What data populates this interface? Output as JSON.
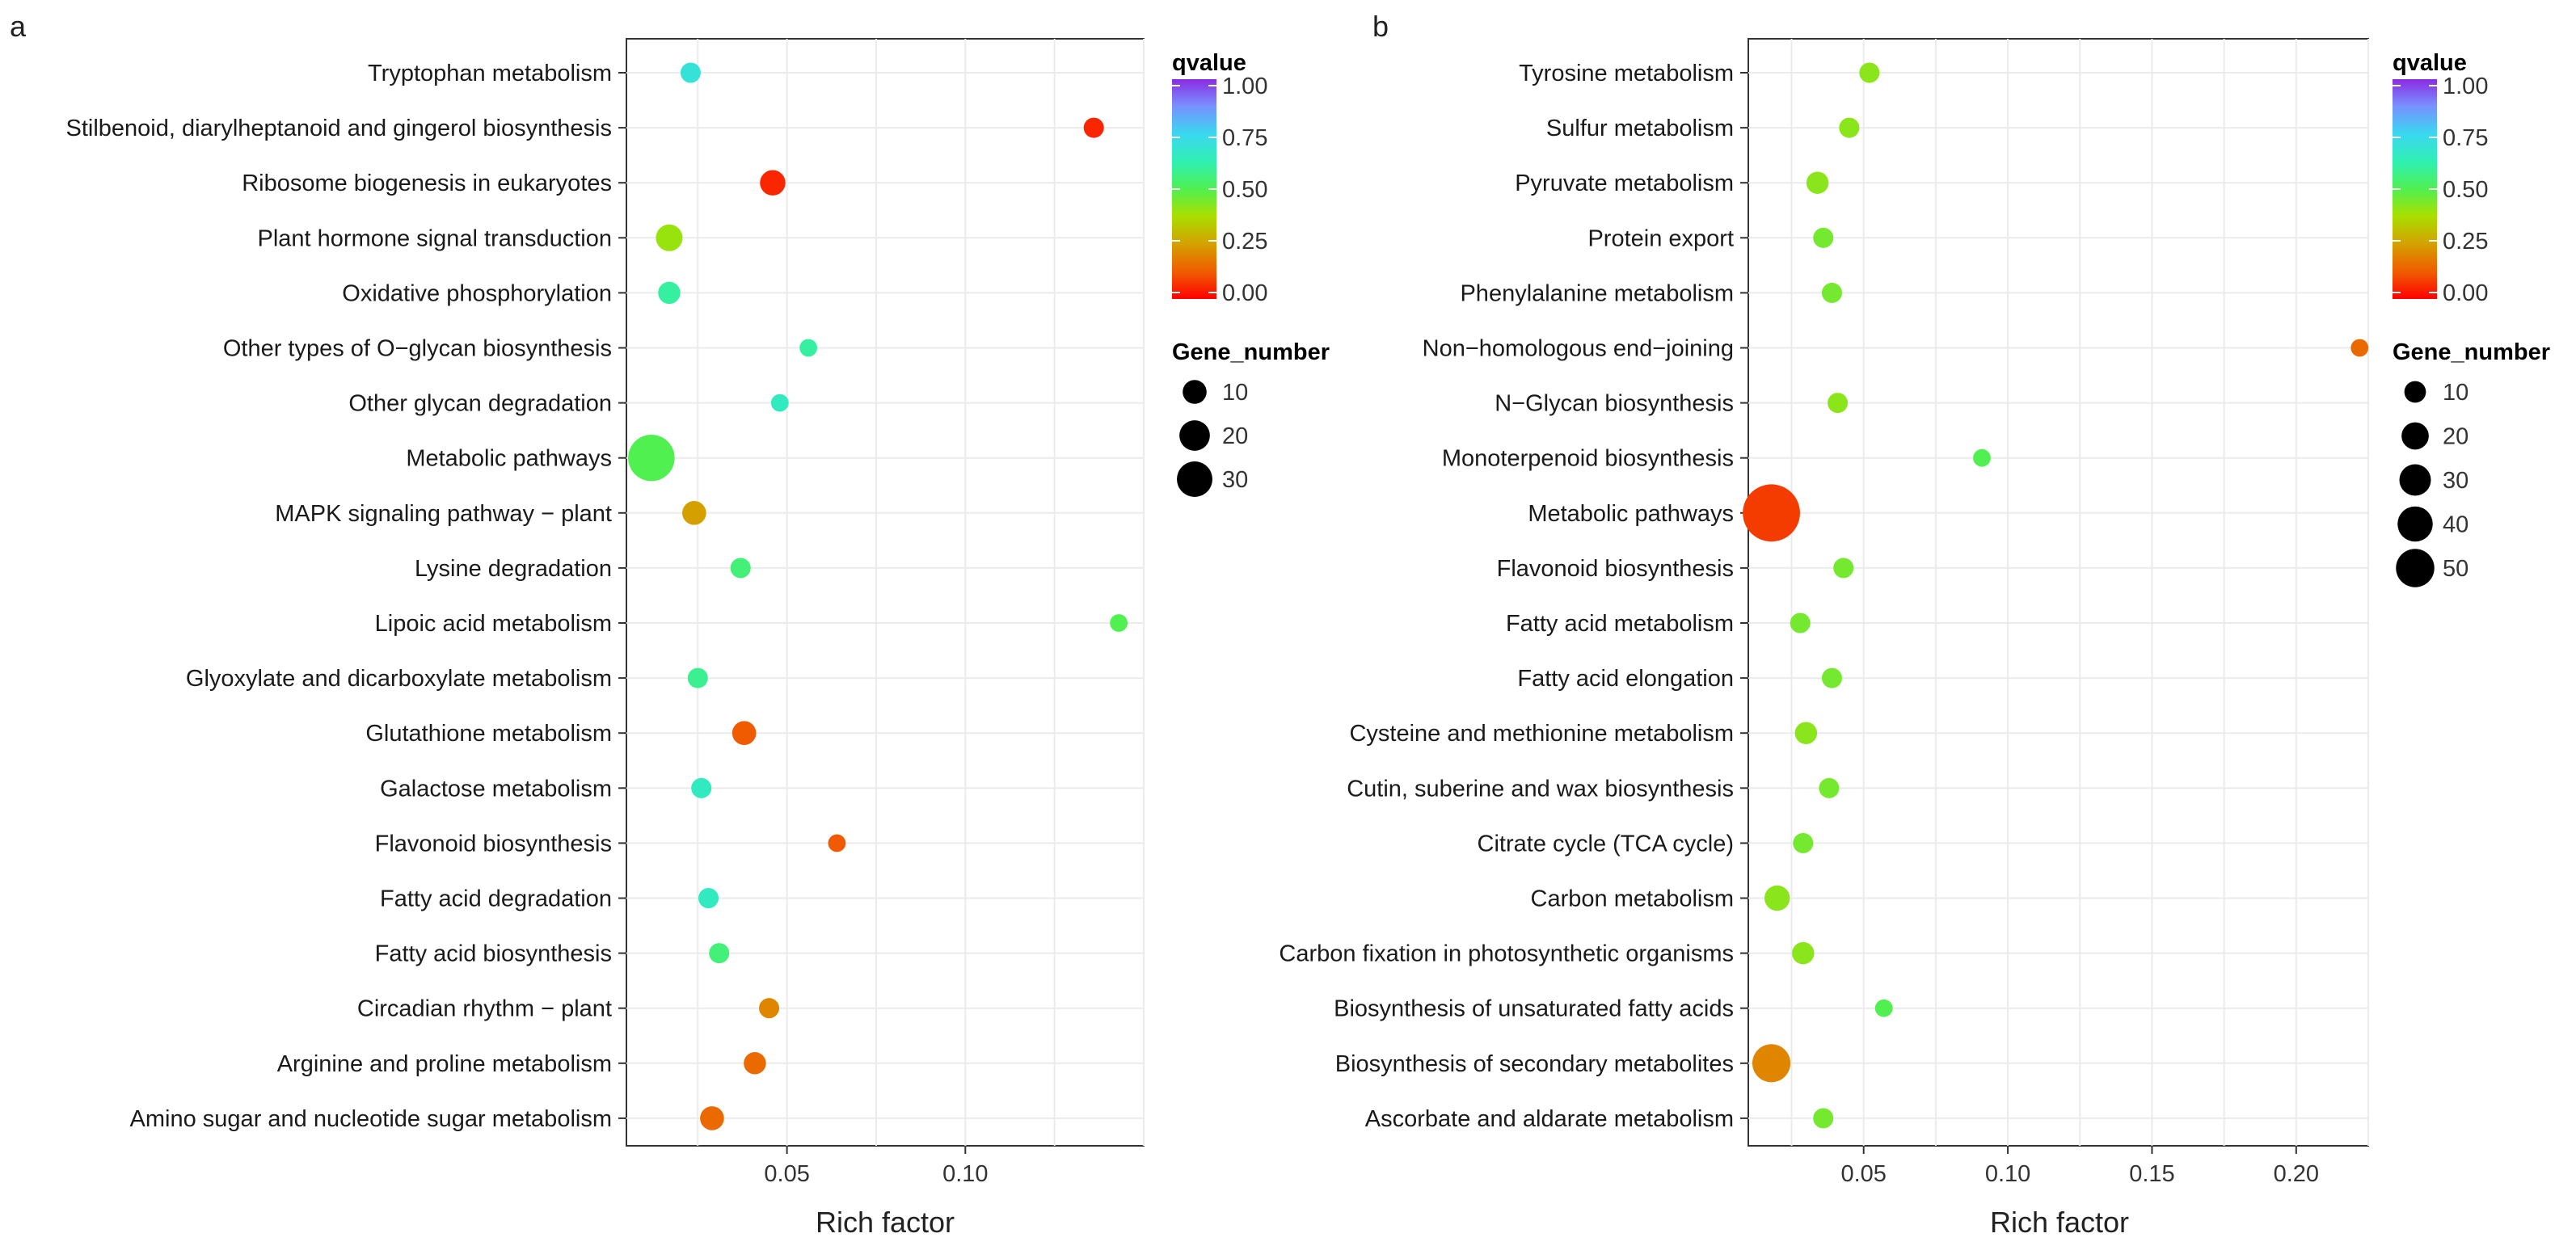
{
  "chart_data": [
    {
      "type": "scatter",
      "panel_label": "a",
      "xlabel": "Rich factor",
      "ylabel": "",
      "xlim": [
        0.005,
        0.15
      ],
      "xticks": [
        0.05,
        0.1
      ],
      "xtick_labels": [
        "0.05",
        "0.10"
      ],
      "grid": true,
      "color_legend": {
        "title": "qvalue",
        "ticks": [
          "1.00",
          "0.75",
          "0.50",
          "0.25",
          "0.00"
        ]
      },
      "size_legend": {
        "title": "Gene_number",
        "values": [
          10,
          20,
          30
        ],
        "labels": [
          "10",
          "20",
          "30"
        ]
      },
      "pathways": [
        {
          "name": "Tryptophan metabolism",
          "rich_factor": 0.023,
          "qvalue": 0.7,
          "gene_number": 2
        },
        {
          "name": "Stilbenoid, diarylheptanoid and gingerol biosynthesis",
          "rich_factor": 0.136,
          "qvalue": 0.05,
          "gene_number": 2
        },
        {
          "name": "Ribosome biogenesis in eukaryotes",
          "rich_factor": 0.046,
          "qvalue": 0.05,
          "gene_number": 5
        },
        {
          "name": "Plant hormone signal transduction",
          "rich_factor": 0.017,
          "qvalue": 0.4,
          "gene_number": 6
        },
        {
          "name": "Oxidative phosphorylation",
          "rich_factor": 0.017,
          "qvalue": 0.6,
          "gene_number": 3
        },
        {
          "name": "Other types of O−glycan biosynthesis",
          "rich_factor": 0.056,
          "qvalue": 0.6,
          "gene_number": 1
        },
        {
          "name": "Other glycan degradation",
          "rich_factor": 0.048,
          "qvalue": 0.65,
          "gene_number": 1
        },
        {
          "name": "Metabolic pathways",
          "rich_factor": 0.012,
          "qvalue": 0.5,
          "gene_number": 31
        },
        {
          "name": "MAPK signaling pathway − plant",
          "rich_factor": 0.024,
          "qvalue": 0.25,
          "gene_number": 4
        },
        {
          "name": "Lysine degradation",
          "rich_factor": 0.037,
          "qvalue": 0.55,
          "gene_number": 2
        },
        {
          "name": "Lipoic acid metabolism",
          "rich_factor": 0.143,
          "qvalue": 0.5,
          "gene_number": 1
        },
        {
          "name": "Glyoxylate and dicarboxylate metabolism",
          "rich_factor": 0.025,
          "qvalue": 0.58,
          "gene_number": 2
        },
        {
          "name": "Glutathione metabolism",
          "rich_factor": 0.038,
          "qvalue": 0.12,
          "gene_number": 4
        },
        {
          "name": "Galactose metabolism",
          "rich_factor": 0.026,
          "qvalue": 0.65,
          "gene_number": 2
        },
        {
          "name": "Flavonoid biosynthesis",
          "rich_factor": 0.064,
          "qvalue": 0.12,
          "gene_number": 1
        },
        {
          "name": "Fatty acid degradation",
          "rich_factor": 0.028,
          "qvalue": 0.65,
          "gene_number": 2
        },
        {
          "name": "Fatty acid biosynthesis",
          "rich_factor": 0.031,
          "qvalue": 0.55,
          "gene_number": 2
        },
        {
          "name": "Circadian rhythm − plant",
          "rich_factor": 0.045,
          "qvalue": 0.2,
          "gene_number": 2
        },
        {
          "name": "Arginine and proline metabolism",
          "rich_factor": 0.041,
          "qvalue": 0.15,
          "gene_number": 3
        },
        {
          "name": "Amino sugar and nucleotide sugar metabolism",
          "rich_factor": 0.029,
          "qvalue": 0.15,
          "gene_number": 4
        }
      ]
    },
    {
      "type": "scatter",
      "panel_label": "b",
      "xlabel": "Rich factor",
      "ylabel": "",
      "xlim": [
        0.01,
        0.225
      ],
      "xticks": [
        0.05,
        0.1,
        0.15,
        0.2
      ],
      "xtick_labels": [
        "0.05",
        "0.10",
        "0.15",
        "0.20"
      ],
      "grid": true,
      "color_legend": {
        "title": "qvalue",
        "ticks": [
          "1.00",
          "0.75",
          "0.50",
          "0.25",
          "0.00"
        ]
      },
      "size_legend": {
        "title": "Gene_number",
        "values": [
          10,
          20,
          30,
          40,
          50
        ],
        "labels": [
          "10",
          "20",
          "30",
          "40",
          "50"
        ]
      },
      "pathways": [
        {
          "name": "Tyrosine metabolism",
          "rich_factor": 0.052,
          "qvalue": 0.42,
          "gene_number": 2
        },
        {
          "name": "Sulfur metabolism",
          "rich_factor": 0.045,
          "qvalue": 0.42,
          "gene_number": 2
        },
        {
          "name": "Pyruvate metabolism",
          "rich_factor": 0.034,
          "qvalue": 0.42,
          "gene_number": 3
        },
        {
          "name": "Protein export",
          "rich_factor": 0.036,
          "qvalue": 0.45,
          "gene_number": 2
        },
        {
          "name": "Phenylalanine metabolism",
          "rich_factor": 0.039,
          "qvalue": 0.45,
          "gene_number": 2
        },
        {
          "name": "Non−homologous end−joining",
          "rich_factor": 0.222,
          "qvalue": 0.15,
          "gene_number": 1
        },
        {
          "name": "N−Glycan biosynthesis",
          "rich_factor": 0.041,
          "qvalue": 0.42,
          "gene_number": 2
        },
        {
          "name": "Monoterpenoid biosynthesis",
          "rich_factor": 0.091,
          "qvalue": 0.5,
          "gene_number": 1
        },
        {
          "name": "Metabolic pathways",
          "rich_factor": 0.018,
          "qvalue": 0.08,
          "gene_number": 53
        },
        {
          "name": "Flavonoid biosynthesis",
          "rich_factor": 0.043,
          "qvalue": 0.45,
          "gene_number": 2
        },
        {
          "name": "Fatty acid metabolism",
          "rich_factor": 0.028,
          "qvalue": 0.45,
          "gene_number": 2
        },
        {
          "name": "Fatty acid elongation",
          "rich_factor": 0.039,
          "qvalue": 0.45,
          "gene_number": 2
        },
        {
          "name": "Cysteine and methionine metabolism",
          "rich_factor": 0.03,
          "qvalue": 0.42,
          "gene_number": 3
        },
        {
          "name": "Cutin, suberine and wax biosynthesis",
          "rich_factor": 0.038,
          "qvalue": 0.45,
          "gene_number": 2
        },
        {
          "name": "Citrate cycle (TCA cycle)",
          "rich_factor": 0.029,
          "qvalue": 0.45,
          "gene_number": 2
        },
        {
          "name": "Carbon metabolism",
          "rich_factor": 0.02,
          "qvalue": 0.42,
          "gene_number": 5
        },
        {
          "name": "Carbon fixation in photosynthetic organisms",
          "rich_factor": 0.029,
          "qvalue": 0.42,
          "gene_number": 3
        },
        {
          "name": "Biosynthesis of unsaturated fatty acids",
          "rich_factor": 0.057,
          "qvalue": 0.5,
          "gene_number": 1
        },
        {
          "name": "Biosynthesis of secondary metabolites",
          "rich_factor": 0.018,
          "qvalue": 0.2,
          "gene_number": 18
        },
        {
          "name": "Ascorbate and aldarate metabolism",
          "rich_factor": 0.036,
          "qvalue": 0.45,
          "gene_number": 2
        }
      ]
    }
  ]
}
